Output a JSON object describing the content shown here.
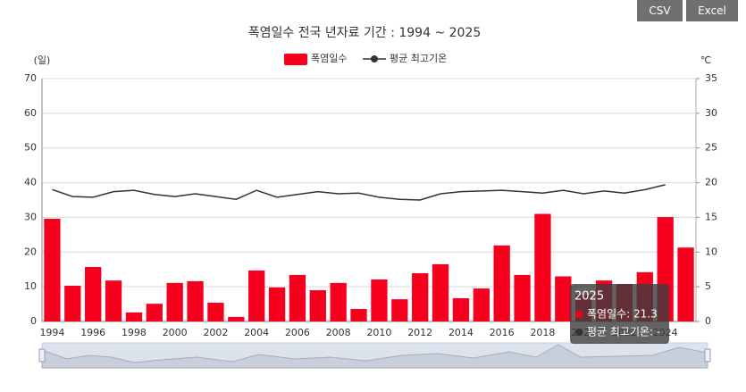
{
  "buttons": [
    "CSV",
    "Excel"
  ],
  "chart_data": {
    "type": "bar",
    "title": "폭염일수 전국 년자료 기간 : 1994 ~ 2025",
    "y_unit": "(일)",
    "y2_unit": "℃",
    "categories": [
      "1994",
      null,
      "1996",
      null,
      "1998",
      null,
      "2000",
      null,
      "2002",
      null,
      "2004",
      null,
      "2006",
      null,
      "2008",
      null,
      "2010",
      null,
      "2012",
      null,
      "2014",
      null,
      "2016",
      null,
      "2018",
      null,
      "2020",
      null,
      "2022",
      null,
      "2024",
      null
    ],
    "series": [
      {
        "name": "폭염일수",
        "type": "bar",
        "color": "#f7001e",
        "values": [
          29.6,
          10.3,
          15.7,
          11.8,
          2.6,
          5.1,
          11.1,
          11.6,
          5.4,
          1.3,
          14.7,
          9.8,
          13.4,
          9.0,
          11.1,
          3.6,
          12.1,
          6.4,
          13.9,
          16.5,
          6.7,
          9.5,
          21.9,
          13.4,
          31.0,
          13.0,
          7.7,
          11.8,
          10.8,
          14.2,
          30.1,
          21.3
        ]
      },
      {
        "name": "평균 최고기온",
        "type": "line",
        "axis": "y2",
        "color": "#333333",
        "values": [
          19.0,
          18.0,
          17.9,
          18.7,
          18.9,
          18.3,
          18.0,
          18.4,
          18.0,
          17.6,
          18.9,
          17.9,
          18.3,
          18.7,
          18.4,
          18.5,
          17.9,
          17.6,
          17.5,
          18.4,
          18.7,
          18.8,
          18.9,
          18.7,
          18.5,
          18.9,
          18.4,
          18.8,
          18.5,
          19.0,
          19.7,
          null
        ]
      }
    ],
    "ylim": [
      0,
      70
    ],
    "yticks": [
      0,
      10,
      20,
      30,
      40,
      50,
      60,
      70
    ],
    "y2lim": [
      0,
      35
    ],
    "y2ticks": [
      0,
      5,
      10,
      15,
      20,
      25,
      30,
      35
    ],
    "grid": true,
    "tooltip": {
      "title": "2025",
      "lines": [
        "폭염일수: 21.3",
        "평균 최고기온: -"
      ]
    }
  }
}
